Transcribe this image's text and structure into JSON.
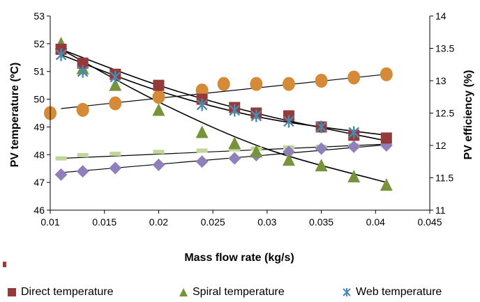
{
  "chart_data": {
    "type": "scatter",
    "xlabel": "Mass flow rate (kg/s)",
    "ylabel_left": "PV temperature (ºC)",
    "ylabel_right": "PV efficiency (%)",
    "xlim": [
      0.01,
      0.045
    ],
    "ylim_left": [
      46,
      53
    ],
    "ylim_right": [
      11,
      14
    ],
    "x_ticks": [
      "0.01",
      "0.015",
      "0.02",
      "0.025",
      "0.03",
      "0.035",
      "0.04",
      "0.045"
    ],
    "y_left_ticks": [
      "46",
      "47",
      "48",
      "49",
      "50",
      "51",
      "52",
      "53"
    ],
    "y_right_ticks": [
      "11",
      "11.5",
      "12",
      "12.5",
      "13",
      "13.5",
      "14"
    ],
    "grid": false,
    "legend_position": "bottom",
    "series": [
      {
        "name": "Direct temperature",
        "axis": "left",
        "marker": "square",
        "color": "#943a3a",
        "x": [
          0.011,
          0.013,
          0.016,
          0.02,
          0.024,
          0.027,
          0.029,
          0.032,
          0.035,
          0.038,
          0.041
        ],
        "y": [
          51.8,
          51.3,
          50.9,
          50.5,
          50.0,
          49.7,
          49.5,
          49.4,
          49.0,
          48.7,
          48.6
        ]
      },
      {
        "name": "Spiral temperature",
        "axis": "left",
        "marker": "triangle",
        "color": "#77933c",
        "x": [
          0.011,
          0.013,
          0.016,
          0.02,
          0.024,
          0.027,
          0.029,
          0.032,
          0.035,
          0.038,
          0.041
        ],
        "y": [
          52.0,
          51.1,
          50.5,
          49.6,
          48.8,
          48.4,
          48.1,
          47.8,
          47.6,
          47.2,
          46.9
        ]
      },
      {
        "name": "Web temperature",
        "axis": "left",
        "marker": "asterisk",
        "color": "#4a8ab0",
        "x": [
          0.011,
          0.013,
          0.016,
          0.024,
          0.027,
          0.029,
          0.032,
          0.035,
          0.038
        ],
        "y": [
          51.6,
          51.0,
          50.8,
          49.8,
          49.6,
          49.4,
          49.2,
          49.0,
          48.8
        ]
      },
      {
        "name": "",
        "axis": "right",
        "marker": "circle",
        "color": "#d48a36",
        "x": [
          0.01,
          0.013,
          0.016,
          0.02,
          0.024,
          0.026,
          0.029,
          0.032,
          0.035,
          0.038,
          0.041
        ],
        "y": [
          12.5,
          12.55,
          12.65,
          12.75,
          12.85,
          12.95,
          12.95,
          12.95,
          13.0,
          13.05,
          13.1
        ]
      },
      {
        "name": "",
        "axis": "right",
        "marker": "dash",
        "color": "#c2d69b",
        "x": [
          0.011,
          0.013,
          0.016,
          0.02,
          0.024,
          0.027,
          0.029,
          0.032,
          0.035,
          0.038,
          0.041
        ],
        "y": [
          11.8,
          11.85,
          11.87,
          11.9,
          11.92,
          11.94,
          11.95,
          11.97,
          11.98,
          12.0,
          12.02
        ]
      },
      {
        "name": "",
        "axis": "right",
        "marker": "diamond",
        "color": "#8f80bc",
        "x": [
          0.011,
          0.013,
          0.016,
          0.02,
          0.024,
          0.027,
          0.029,
          0.032,
          0.035,
          0.038,
          0.041
        ],
        "y": [
          11.55,
          11.6,
          11.65,
          11.7,
          11.75,
          11.8,
          11.85,
          11.9,
          11.95,
          11.98,
          12.0
        ]
      }
    ],
    "trendlines": [
      {
        "axis": "left",
        "kind": "poly",
        "color": "#000000",
        "x": [
          0.011,
          0.02,
          0.03,
          0.041
        ],
        "y": [
          51.6,
          50.3,
          49.3,
          48.7
        ]
      },
      {
        "axis": "left",
        "kind": "poly",
        "color": "#000000",
        "x": [
          0.011,
          0.02,
          0.03,
          0.041
        ],
        "y": [
          51.8,
          50.5,
          49.4,
          48.5
        ]
      },
      {
        "axis": "left",
        "kind": "poly",
        "color": "#000000",
        "x": [
          0.011,
          0.02,
          0.03,
          0.041
        ],
        "y": [
          51.8,
          49.9,
          48.2,
          47.0
        ]
      },
      {
        "axis": "right",
        "kind": "linear",
        "color": "#000000",
        "x": [
          0.011,
          0.041
        ],
        "y": [
          12.57,
          13.1
        ]
      },
      {
        "axis": "right",
        "kind": "linear",
        "color": "#000000",
        "x": [
          0.011,
          0.041
        ],
        "y": [
          11.8,
          12.02
        ]
      },
      {
        "axis": "right",
        "kind": "linear",
        "color": "#000000",
        "x": [
          0.011,
          0.041
        ],
        "y": [
          11.58,
          12.01
        ]
      }
    ]
  }
}
